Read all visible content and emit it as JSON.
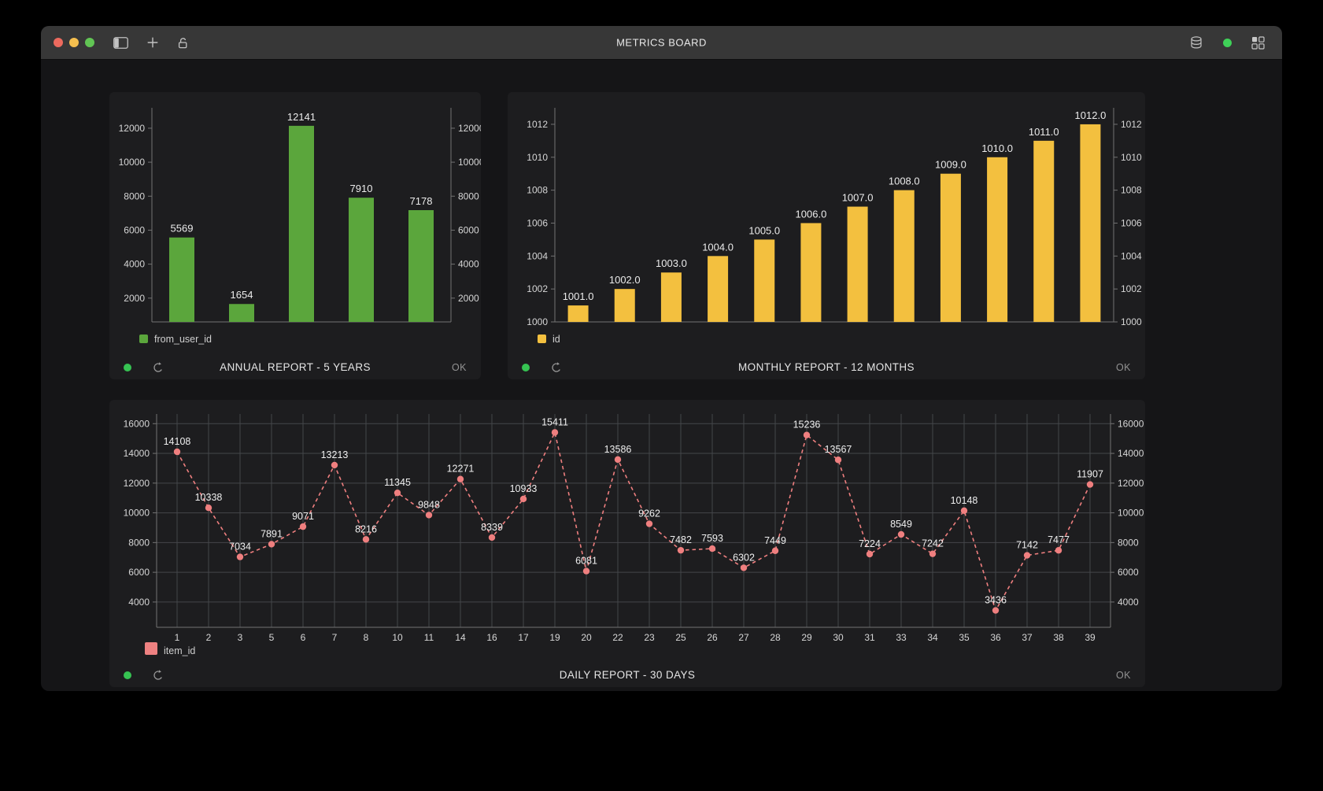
{
  "titlebar": {
    "title": "METRICS BOARD",
    "traffic_lights": [
      {
        "name": "close",
        "color": "#ec6a5e"
      },
      {
        "name": "minimize",
        "color": "#f5bf4f"
      },
      {
        "name": "zoom",
        "color": "#61c554"
      }
    ],
    "left_icons": [
      "sidebar-toggle",
      "new-tab",
      "unlock"
    ],
    "right_icons": [
      "database",
      "connection-status-dot",
      "layout-grid"
    ],
    "connection_status_color": "#3fd158",
    "icon_color": "#c2c2c2"
  },
  "cards": [
    {
      "title": "ANNUAL REPORT - 5 YEARS",
      "ok_label": "OK",
      "status_color": "#36c352",
      "legend": {
        "label": "from_user_id",
        "color": "#5ba63c"
      }
    },
    {
      "title": "MONTHLY REPORT - 12 MONTHS",
      "ok_label": "OK",
      "status_color": "#36c352",
      "legend": {
        "label": "id",
        "color": "#f3c03f"
      }
    },
    {
      "title": "DAILY REPORT - 30 DAYS",
      "ok_label": "OK",
      "status_color": "#36c352",
      "legend": {
        "label": "item_id",
        "color": "#ee8181"
      }
    }
  ],
  "chart_data": [
    {
      "type": "bar",
      "title": "ANNUAL REPORT - 5 YEARS",
      "categories": [
        "",
        "",
        "",
        "",
        ""
      ],
      "series": [
        {
          "name": "from_user_id",
          "values": [
            5569,
            1654,
            12141,
            7910,
            7178
          ]
        }
      ],
      "value_labels": [
        "5569",
        "1654",
        "12141",
        "7910",
        "7178"
      ],
      "yticks": [
        2000,
        4000,
        6000,
        8000,
        10000,
        12000
      ],
      "ylim": [
        600,
        13200
      ],
      "xlabel": "",
      "ylabel": "",
      "color": "#5ba63c",
      "grid": false,
      "legend": "from_user_id",
      "legend_position": "bottom-left",
      "y_axis_sides": "both"
    },
    {
      "type": "bar",
      "title": "MONTHLY REPORT - 12 MONTHS",
      "categories": [
        "",
        "",
        "",
        "",
        "",
        "",
        "",
        "",
        "",
        "",
        "",
        ""
      ],
      "series": [
        {
          "name": "id",
          "values": [
            1001,
            1002,
            1003,
            1004,
            1005,
            1006,
            1007,
            1008,
            1009,
            1010,
            1011,
            1012
          ]
        }
      ],
      "value_labels": [
        "1001.0",
        "1002.0",
        "1003.0",
        "1004.0",
        "1005.0",
        "1006.0",
        "1007.0",
        "1008.0",
        "1009.0",
        "1010.0",
        "1011.0",
        "1012.0"
      ],
      "yticks": [
        1000,
        1002,
        1004,
        1006,
        1008,
        1010,
        1012
      ],
      "ylim": [
        1000,
        1013
      ],
      "xlabel": "",
      "ylabel": "",
      "color": "#f3c03f",
      "grid": false,
      "legend": "id",
      "legend_position": "bottom-left",
      "y_axis_sides": "both"
    },
    {
      "type": "line",
      "title": "DAILY REPORT - 30 DAYS",
      "x": [
        "1",
        "2",
        "3",
        "5",
        "6",
        "7",
        "8",
        "10",
        "11",
        "14",
        "16",
        "17",
        "19",
        "20",
        "22",
        "23",
        "25",
        "26",
        "27",
        "28",
        "29",
        "30",
        "31",
        "33",
        "34",
        "35",
        "36",
        "37",
        "38",
        "39"
      ],
      "series": [
        {
          "name": "item_id",
          "values": [
            14108,
            10338,
            7034,
            7891,
            9071,
            13213,
            8216,
            11345,
            9848,
            12271,
            8339,
            10933,
            15411,
            6081,
            13586,
            9262,
            7482,
            7593,
            6302,
            7449,
            15236,
            13567,
            7224,
            8549,
            7242,
            10148,
            3436,
            7142,
            7477,
            11907
          ]
        }
      ],
      "value_labels": [
        "14108",
        "10338",
        "7034",
        "7891",
        "9071",
        "13213",
        "8216",
        "11345",
        "9848",
        "12271",
        "8339",
        "10933",
        "15411",
        "6081",
        "13586",
        "9262",
        "7482",
        "7593",
        "6302",
        "7449",
        "15236",
        "13567",
        "7224",
        "8549",
        "7242",
        "10148",
        "3436",
        "7142",
        "7477",
        "11907"
      ],
      "yticks": [
        4000,
        6000,
        8000,
        10000,
        12000,
        14000,
        16000
      ],
      "ylim": [
        2300,
        16650
      ],
      "xlabel": "",
      "ylabel": "",
      "color": "#ef7f7f",
      "line_style": "dashed",
      "marker": "circle",
      "grid": true,
      "legend": "item_id",
      "legend_position": "bottom-left",
      "y_axis_sides": "both"
    }
  ]
}
